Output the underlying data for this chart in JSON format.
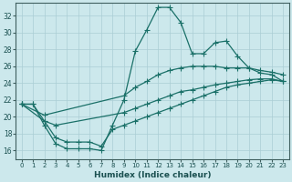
{
  "xlabel": "Humidex (Indice chaleur)",
  "background_color": "#cce8ec",
  "grid_color": "#aacdd4",
  "line_color": "#1a7068",
  "xlim": [
    -0.5,
    23.5
  ],
  "ylim": [
    15.0,
    33.5
  ],
  "yticks": [
    16,
    18,
    20,
    22,
    24,
    26,
    28,
    30,
    32
  ],
  "xticks": [
    0,
    1,
    2,
    3,
    4,
    5,
    6,
    7,
    8,
    9,
    10,
    11,
    12,
    13,
    14,
    15,
    16,
    17,
    18,
    19,
    20,
    21,
    22,
    23
  ],
  "line1_x": [
    0,
    1,
    2,
    3,
    4,
    5,
    6,
    7,
    8,
    9,
    10,
    11,
    12,
    13,
    14,
    15,
    16,
    17,
    18,
    19,
    20,
    21,
    22,
    23
  ],
  "line1_y": [
    21.5,
    21.5,
    19.0,
    16.8,
    16.2,
    16.2,
    16.2,
    16.0,
    19.0,
    22.0,
    27.8,
    30.3,
    33.0,
    33.0,
    31.2,
    27.5,
    27.5,
    28.8,
    29.0,
    27.2,
    25.8,
    25.2,
    25.0,
    24.2
  ],
  "line2_x": [
    0,
    2,
    9,
    10,
    11,
    12,
    13,
    14,
    15,
    16,
    17,
    18,
    19,
    20,
    21,
    22,
    23
  ],
  "line2_y": [
    21.5,
    20.2,
    22.5,
    23.5,
    24.2,
    25.0,
    25.5,
    25.8,
    26.0,
    26.0,
    26.0,
    25.8,
    25.8,
    25.8,
    25.5,
    25.3,
    25.0
  ],
  "line3_x": [
    0,
    2,
    3,
    9,
    10,
    11,
    12,
    13,
    14,
    15,
    16,
    17,
    18,
    19,
    20,
    21,
    22,
    23
  ],
  "line3_y": [
    21.5,
    19.5,
    19.0,
    20.5,
    21.0,
    21.5,
    22.0,
    22.5,
    23.0,
    23.2,
    23.5,
    23.8,
    24.0,
    24.2,
    24.4,
    24.5,
    24.5,
    24.2
  ],
  "line4_x": [
    0,
    1,
    2,
    3,
    4,
    5,
    6,
    7,
    8,
    9,
    10,
    11,
    12,
    13,
    14,
    15,
    16,
    17,
    18,
    19,
    20,
    21,
    22,
    23
  ],
  "line4_y": [
    21.5,
    21.5,
    19.5,
    17.5,
    17.0,
    17.0,
    17.0,
    16.5,
    18.5,
    19.0,
    19.5,
    20.0,
    20.5,
    21.0,
    21.5,
    22.0,
    22.5,
    23.0,
    23.5,
    23.8,
    24.0,
    24.2,
    24.4,
    24.2
  ]
}
